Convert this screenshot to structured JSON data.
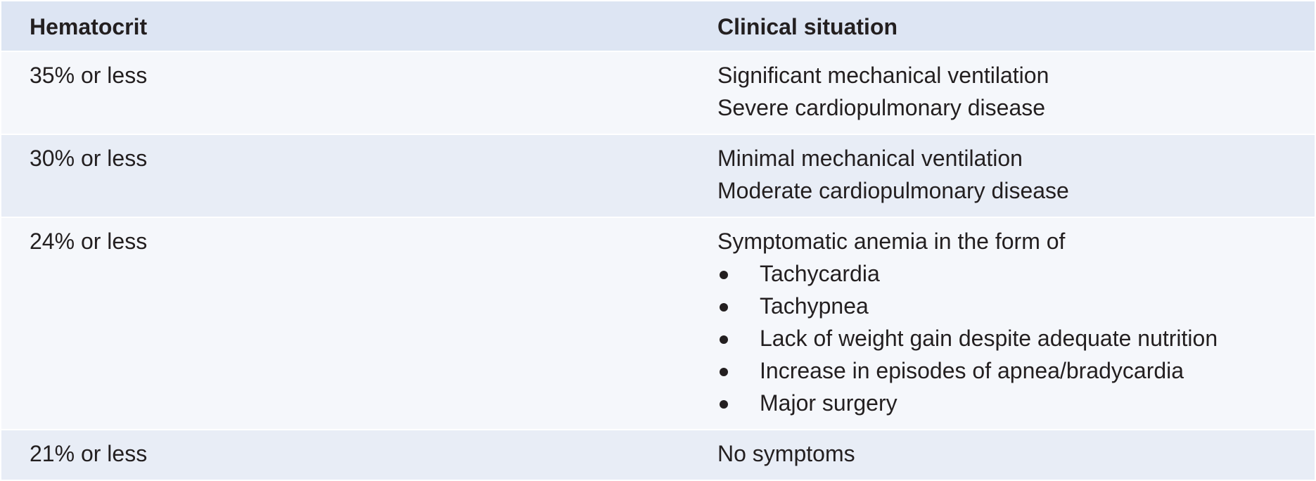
{
  "table": {
    "headers": [
      "Hematocrit",
      "Clinical situation"
    ],
    "rows": [
      {
        "hematocrit": "35% or less",
        "lines": [
          "Significant mechanical ventilation",
          "Severe cardiopulmonary disease"
        ],
        "bullets": []
      },
      {
        "hematocrit": "30% or less",
        "lines": [
          "Minimal mechanical ventilation",
          "Moderate cardiopulmonary disease"
        ],
        "bullets": []
      },
      {
        "hematocrit": "24% or less",
        "lines": [
          "Symptomatic anemia in the form of"
        ],
        "bullets": [
          "Tachycardia",
          "Tachypnea",
          "Lack of weight gain despite adequate nutrition",
          "Increase in episodes of apnea/bradycardia",
          "Major surgery"
        ]
      },
      {
        "hematocrit": "21% or less",
        "lines": [
          "No symptoms"
        ],
        "bullets": []
      }
    ]
  },
  "colors": {
    "header_bg": "#dde5f3",
    "row_light": "#f5f7fb",
    "row_alt": "#e8edf6",
    "text": "#231f20"
  }
}
